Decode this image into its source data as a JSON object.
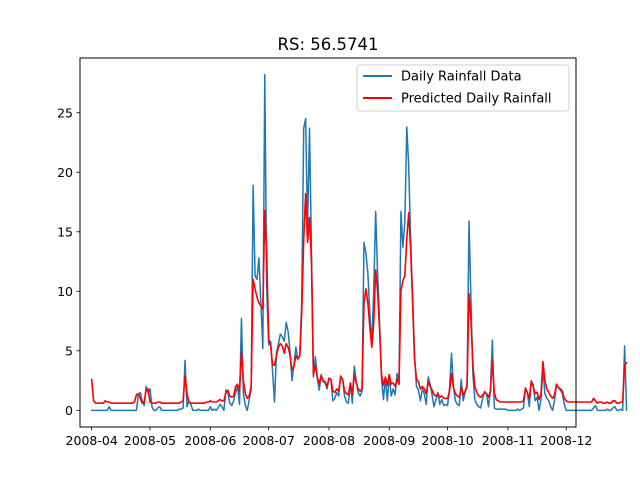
{
  "chart_data": {
    "type": "line",
    "title": "RS: 56.5741",
    "xlabel": "",
    "ylabel": "",
    "x_start": "2008-04-01",
    "x_end": "2008-11-30",
    "xlim": [
      "2008-03-26",
      "2008-12-06"
    ],
    "ylim": [
      -1.4,
      29.6
    ],
    "x_ticks": [
      {
        "date": "2008-04-01",
        "label": "2008-04"
      },
      {
        "date": "2008-05-01",
        "label": "2008-05"
      },
      {
        "date": "2008-06-01",
        "label": "2008-06"
      },
      {
        "date": "2008-07-01",
        "label": "2008-07"
      },
      {
        "date": "2008-08-01",
        "label": "2008-08"
      },
      {
        "date": "2008-09-01",
        "label": "2008-09"
      },
      {
        "date": "2008-10-01",
        "label": "2008-10"
      },
      {
        "date": "2008-11-01",
        "label": "2008-11"
      },
      {
        "date": "2008-12-01",
        "label": "2008-12"
      }
    ],
    "y_ticks": [
      0,
      5,
      10,
      15,
      20,
      25
    ],
    "grid": false,
    "legend_position": "top-right",
    "series": [
      {
        "name": "Daily Rainfall Data",
        "color": "#1f77b4",
        "values": [
          0,
          0,
          0,
          0,
          0,
          0,
          0,
          0,
          0,
          0.3,
          0,
          0,
          0,
          0,
          0,
          0,
          0,
          0,
          0,
          0,
          0,
          0,
          0,
          0,
          1.3,
          1.5,
          0.8,
          0.4,
          2.0,
          1.5,
          1.8,
          0.3,
          0,
          0,
          0.2,
          0.3,
          0,
          0,
          0,
          0,
          0,
          0,
          0,
          0,
          0,
          0.1,
          0.1,
          0.2,
          4.2,
          0.3,
          0.8,
          0.5,
          0,
          0,
          0,
          0.1,
          0,
          0,
          0,
          0,
          0,
          0.3,
          0,
          0.1,
          0,
          0.2,
          0.5,
          0.3,
          0,
          1.7,
          1.5,
          0.6,
          0.4,
          0.8,
          1.5,
          2.0,
          0.5,
          7.7,
          1.4,
          0.4,
          0,
          0.9,
          1.8,
          18.9,
          11.3,
          11.0,
          12.8,
          9.0,
          5.2,
          28.2,
          10.2,
          5.5,
          5.8,
          3.3,
          0.7,
          4.8,
          5.6,
          6.4,
          6.2,
          5.8,
          7.4,
          6.6,
          4.9,
          2.5,
          3.8,
          5.3,
          4.3,
          4.6,
          9.2,
          23.7,
          24.5,
          15.3,
          23.7,
          13.5,
          2.8,
          4.5,
          2.7,
          1.7,
          3.0,
          2.4,
          2.3,
          1.8,
          2.7,
          2.6,
          0.8,
          1.0,
          1.5,
          1.2,
          2.9,
          2.6,
          1.2,
          0.7,
          0.6,
          2.3,
          0.6,
          3.7,
          2.5,
          1.5,
          1.2,
          1.6,
          14.1,
          13.2,
          11.5,
          8.2,
          5.4,
          10.0,
          16.7,
          11.5,
          7.5,
          2.7,
          0.9,
          2.7,
          0.8,
          3.0,
          1.2,
          1.8,
          1.3,
          3.1,
          2.2,
          16.7,
          13.7,
          15.8,
          23.8,
          20.5,
          14.1,
          9.6,
          4.5,
          2.0,
          1.7,
          0.8,
          1.8,
          1.4,
          0.5,
          2.8,
          2.2,
          1.3,
          0.3,
          0.9,
          1.5,
          0.5,
          0.9,
          0.4,
          0.5,
          0.4,
          1.9,
          4.8,
          2.0,
          0.8,
          0.5,
          0.4,
          2.6,
          0.8,
          1.5,
          2.2,
          15.9,
          9.2,
          3.0,
          0.9,
          0.5,
          0.3,
          0.2,
          1.0,
          1.6,
          1.4,
          0.3,
          1.6,
          5.9,
          0.2,
          0.1,
          0.1,
          0.1,
          0.1,
          0.1,
          0.1,
          0,
          0,
          0,
          0,
          0,
          0.1,
          0,
          0.1,
          0.2,
          1.9,
          1.5,
          0.3,
          2.5,
          2.1,
          0.8,
          1.1,
          0,
          0.9,
          3.5,
          1.4,
          1.0,
          0.8,
          0.3,
          0,
          0.9,
          2.2,
          1.9,
          1.7,
          1.4,
          0.5,
          0,
          0,
          0,
          0,
          0,
          0,
          0,
          0,
          0,
          0,
          0,
          0,
          0,
          0,
          0.2,
          0.4,
          0,
          0,
          0,
          0,
          0,
          0.1,
          0,
          0,
          0.2,
          0.3,
          0,
          0,
          0.1,
          0,
          5.4,
          0
        ]
      },
      {
        "name": "Predicted Daily Rainfall",
        "color": "#ff0000",
        "values": [
          2.6,
          0.8,
          0.6,
          0.6,
          0.6,
          0.6,
          0.6,
          0.8,
          0.7,
          0.7,
          0.6,
          0.6,
          0.6,
          0.6,
          0.6,
          0.6,
          0.6,
          0.6,
          0.6,
          0.6,
          0.6,
          0.6,
          0.7,
          1.3,
          1.4,
          1.0,
          0.6,
          0.7,
          1.7,
          1.8,
          0.7,
          0.6,
          0.6,
          0.6,
          0.7,
          0.7,
          0.6,
          0.6,
          0.6,
          0.6,
          0.6,
          0.6,
          0.6,
          0.6,
          0.6,
          0.6,
          0.7,
          0.8,
          2.9,
          1.4,
          0.7,
          0.6,
          0.6,
          0.6,
          0.6,
          0.6,
          0.6,
          0.6,
          0.6,
          0.7,
          0.7,
          0.8,
          0.7,
          0.7,
          0.7,
          0.8,
          0.9,
          0.8,
          0.8,
          1.5,
          1.7,
          1.2,
          1.1,
          1.2,
          2.0,
          2.2,
          1.6,
          4.9,
          2.5,
          1.4,
          1.0,
          1.2,
          2.0,
          11.0,
          10.2,
          9.5,
          9.0,
          8.8,
          8.5,
          16.8,
          13.0,
          6.0,
          5.5,
          3.8,
          3.8,
          4.6,
          5.3,
          5.6,
          5.4,
          4.8,
          5.6,
          5.3,
          4.6,
          3.4,
          3.7,
          4.6,
          4.3,
          4.6,
          8.2,
          14.3,
          18.2,
          14.1,
          16.2,
          12.4,
          3.0,
          3.8,
          2.8,
          2.2,
          2.9,
          2.5,
          2.4,
          2.0,
          2.7,
          2.6,
          1.6,
          1.5,
          1.8,
          1.6,
          2.8,
          2.6,
          1.6,
          1.4,
          1.3,
          2.3,
          1.3,
          3.0,
          2.3,
          1.8,
          1.6,
          1.8,
          9.0,
          10.2,
          9.0,
          7.0,
          5.3,
          7.3,
          11.8,
          10.0,
          6.8,
          3.0,
          2.1,
          2.8,
          2.1,
          3.0,
          2.2,
          2.3,
          2.0,
          2.6,
          2.2,
          10.0,
          10.9,
          11.3,
          14.4,
          16.6,
          13.5,
          9.0,
          4.3,
          2.6,
          2.4,
          1.8,
          2.0,
          1.8,
          1.4,
          2.4,
          2.0,
          1.7,
          1.3,
          1.2,
          1.4,
          1.1,
          1.2,
          1.0,
          1.0,
          1.0,
          1.6,
          3.1,
          1.9,
          1.4,
          1.2,
          1.1,
          1.9,
          1.3,
          1.6,
          2.0,
          9.8,
          7.6,
          3.8,
          2.0,
          1.5,
          1.2,
          1.1,
          1.3,
          1.5,
          1.4,
          1.1,
          1.6,
          4.2,
          1.5,
          0.9,
          0.8,
          0.7,
          0.7,
          0.7,
          0.7,
          0.7,
          0.7,
          0.7,
          0.7,
          0.7,
          0.7,
          0.7,
          0.7,
          0.8,
          1.8,
          1.5,
          1.0,
          2.4,
          2.0,
          1.4,
          1.5,
          0.9,
          1.4,
          4.1,
          2.5,
          1.8,
          1.5,
          1.2,
          1.0,
          1.3,
          2.2,
          1.9,
          1.8,
          1.6,
          1.0,
          0.8,
          0.7,
          0.7,
          0.7,
          0.7,
          0.7,
          0.7,
          0.7,
          0.7,
          0.7,
          0.7,
          0.7,
          0.7,
          0.7,
          1.0,
          0.8,
          0.6,
          0.7,
          0.7,
          0.6,
          0.6,
          0.7,
          0.6,
          0.6,
          0.8,
          0.8,
          0.6,
          0.6,
          0.7,
          0.7,
          3.8,
          4.0
        ]
      }
    ]
  }
}
